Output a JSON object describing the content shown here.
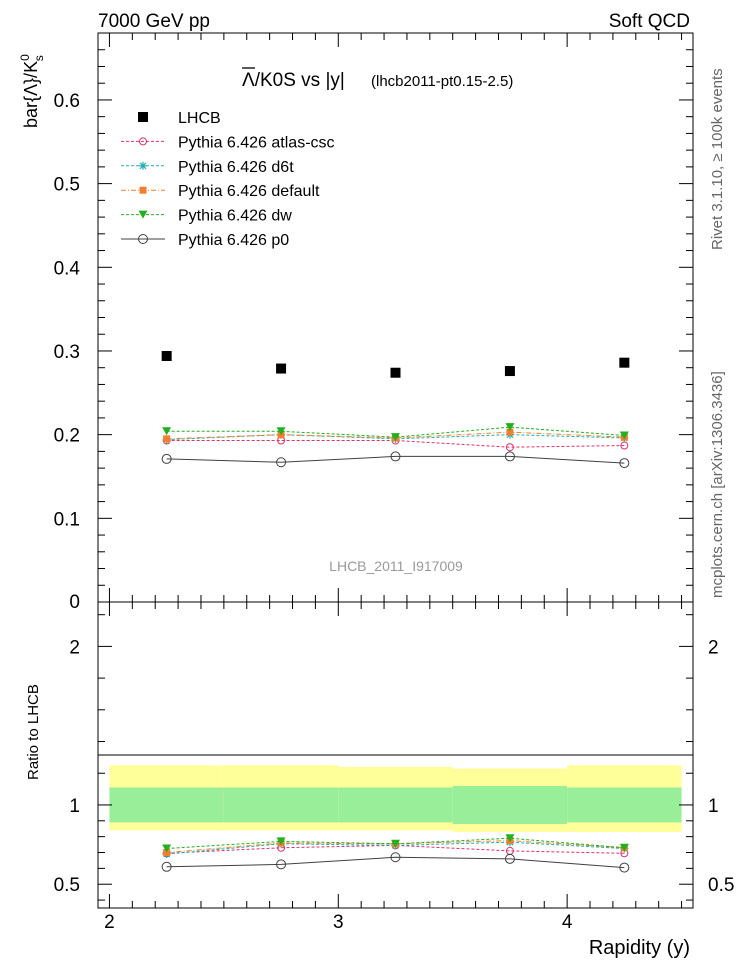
{
  "header": {
    "left": "7000 GeV pp",
    "right": "Soft QCD"
  },
  "side_labels": {
    "rivet": "Rivet 3.1.10, ≥ 100k events",
    "mcplots": "mcplots.cern.ch [arXiv:1306.3436]"
  },
  "chart_data": [
    {
      "type": "scatter",
      "title_main": "Λ/K0S vs |y|",
      "title_overline_char": "Λ",
      "title_rest": "/K0S vs |y|",
      "title_sub": "(lhcb2011-pt0.15-2.5)",
      "ylabel": "bar{Λ}/K",
      "ylabel_sup": "0",
      "ylabel_sub": "s",
      "watermark": "LHCB_2011_I917009",
      "xlim": [
        1.95,
        4.55
      ],
      "ylim": [
        0,
        0.68
      ],
      "yticks": [
        0.1,
        0.2,
        0.3,
        0.4,
        0.5,
        0.6
      ],
      "ytick_labels": [
        "0.1",
        "0.2",
        "0.3",
        "0.4",
        "0.5",
        "0.6"
      ],
      "ytick_zero_label": "0",
      "x": [
        2.25,
        2.75,
        3.25,
        3.75,
        4.25
      ],
      "series": [
        {
          "name": "LHCB",
          "color": "#000000",
          "marker": "filled-square",
          "line": "none",
          "values": [
            0.294,
            0.279,
            0.274,
            0.276,
            0.286
          ]
        },
        {
          "name": "Pythia 6.426 atlas-csc",
          "color": "#e0306a",
          "marker": "open-circle",
          "line": "dashed",
          "values": [
            0.193,
            0.193,
            0.193,
            0.185,
            0.187
          ]
        },
        {
          "name": "Pythia 6.426 d6t",
          "color": "#20b0b0",
          "marker": "star",
          "line": "dashed",
          "values": [
            0.194,
            0.2,
            0.195,
            0.2,
            0.196
          ]
        },
        {
          "name": "Pythia 6.426 default",
          "color": "#f08030",
          "marker": "filled-square",
          "line": "dashdot",
          "values": [
            0.195,
            0.2,
            0.196,
            0.203,
            0.197
          ]
        },
        {
          "name": "Pythia 6.426 dw",
          "color": "#20b020",
          "marker": "filled-triangle-down",
          "line": "dashed",
          "values": [
            0.204,
            0.204,
            0.197,
            0.209,
            0.199
          ]
        },
        {
          "name": "Pythia 6.426 p0",
          "color": "#404040",
          "marker": "open-circle",
          "line": "solid",
          "values": [
            0.171,
            0.167,
            0.174,
            0.174,
            0.166
          ]
        }
      ]
    },
    {
      "type": "scatter",
      "ylabel": "Ratio to LHCB",
      "xlabel": "Rapidity (y)",
      "xlim": [
        1.95,
        4.55
      ],
      "ylim": [
        0.35,
        2.28
      ],
      "xticks": [
        2,
        3,
        4
      ],
      "xtick_labels": [
        "2",
        "3",
        "4"
      ],
      "yticks": [
        0.5,
        1,
        2
      ],
      "ytick_labels": [
        "0.5",
        "1",
        "2"
      ],
      "bins": [
        2.0,
        2.5,
        3.0,
        3.5,
        4.0,
        4.5
      ],
      "band_stat": [
        [
          0.89,
          1.11
        ],
        [
          0.89,
          1.11
        ],
        [
          0.89,
          1.11
        ],
        [
          0.88,
          1.12
        ],
        [
          0.89,
          1.11
        ]
      ],
      "band_total": [
        [
          0.84,
          1.25
        ],
        [
          0.84,
          1.25
        ],
        [
          0.84,
          1.24
        ],
        [
          0.83,
          1.23
        ],
        [
          0.83,
          1.25
        ]
      ],
      "band_stat_color": "#99ee99",
      "band_total_color": "#ffff99",
      "x": [
        2.25,
        2.75,
        3.25,
        3.75,
        4.25
      ],
      "series": [
        {
          "name": "Pythia 6.426 atlas-csc",
          "values": [
            0.695,
            0.73,
            0.745,
            0.71,
            0.695
          ]
        },
        {
          "name": "Pythia 6.426 d6t",
          "values": [
            0.69,
            0.755,
            0.745,
            0.765,
            0.725
          ]
        },
        {
          "name": "Pythia 6.426 default",
          "values": [
            0.7,
            0.76,
            0.755,
            0.775,
            0.73
          ]
        },
        {
          "name": "Pythia 6.426 dw",
          "values": [
            0.725,
            0.77,
            0.755,
            0.79,
            0.73
          ]
        },
        {
          "name": "Pythia 6.426 p0",
          "values": [
            0.61,
            0.625,
            0.67,
            0.66,
            0.605
          ]
        }
      ]
    }
  ]
}
